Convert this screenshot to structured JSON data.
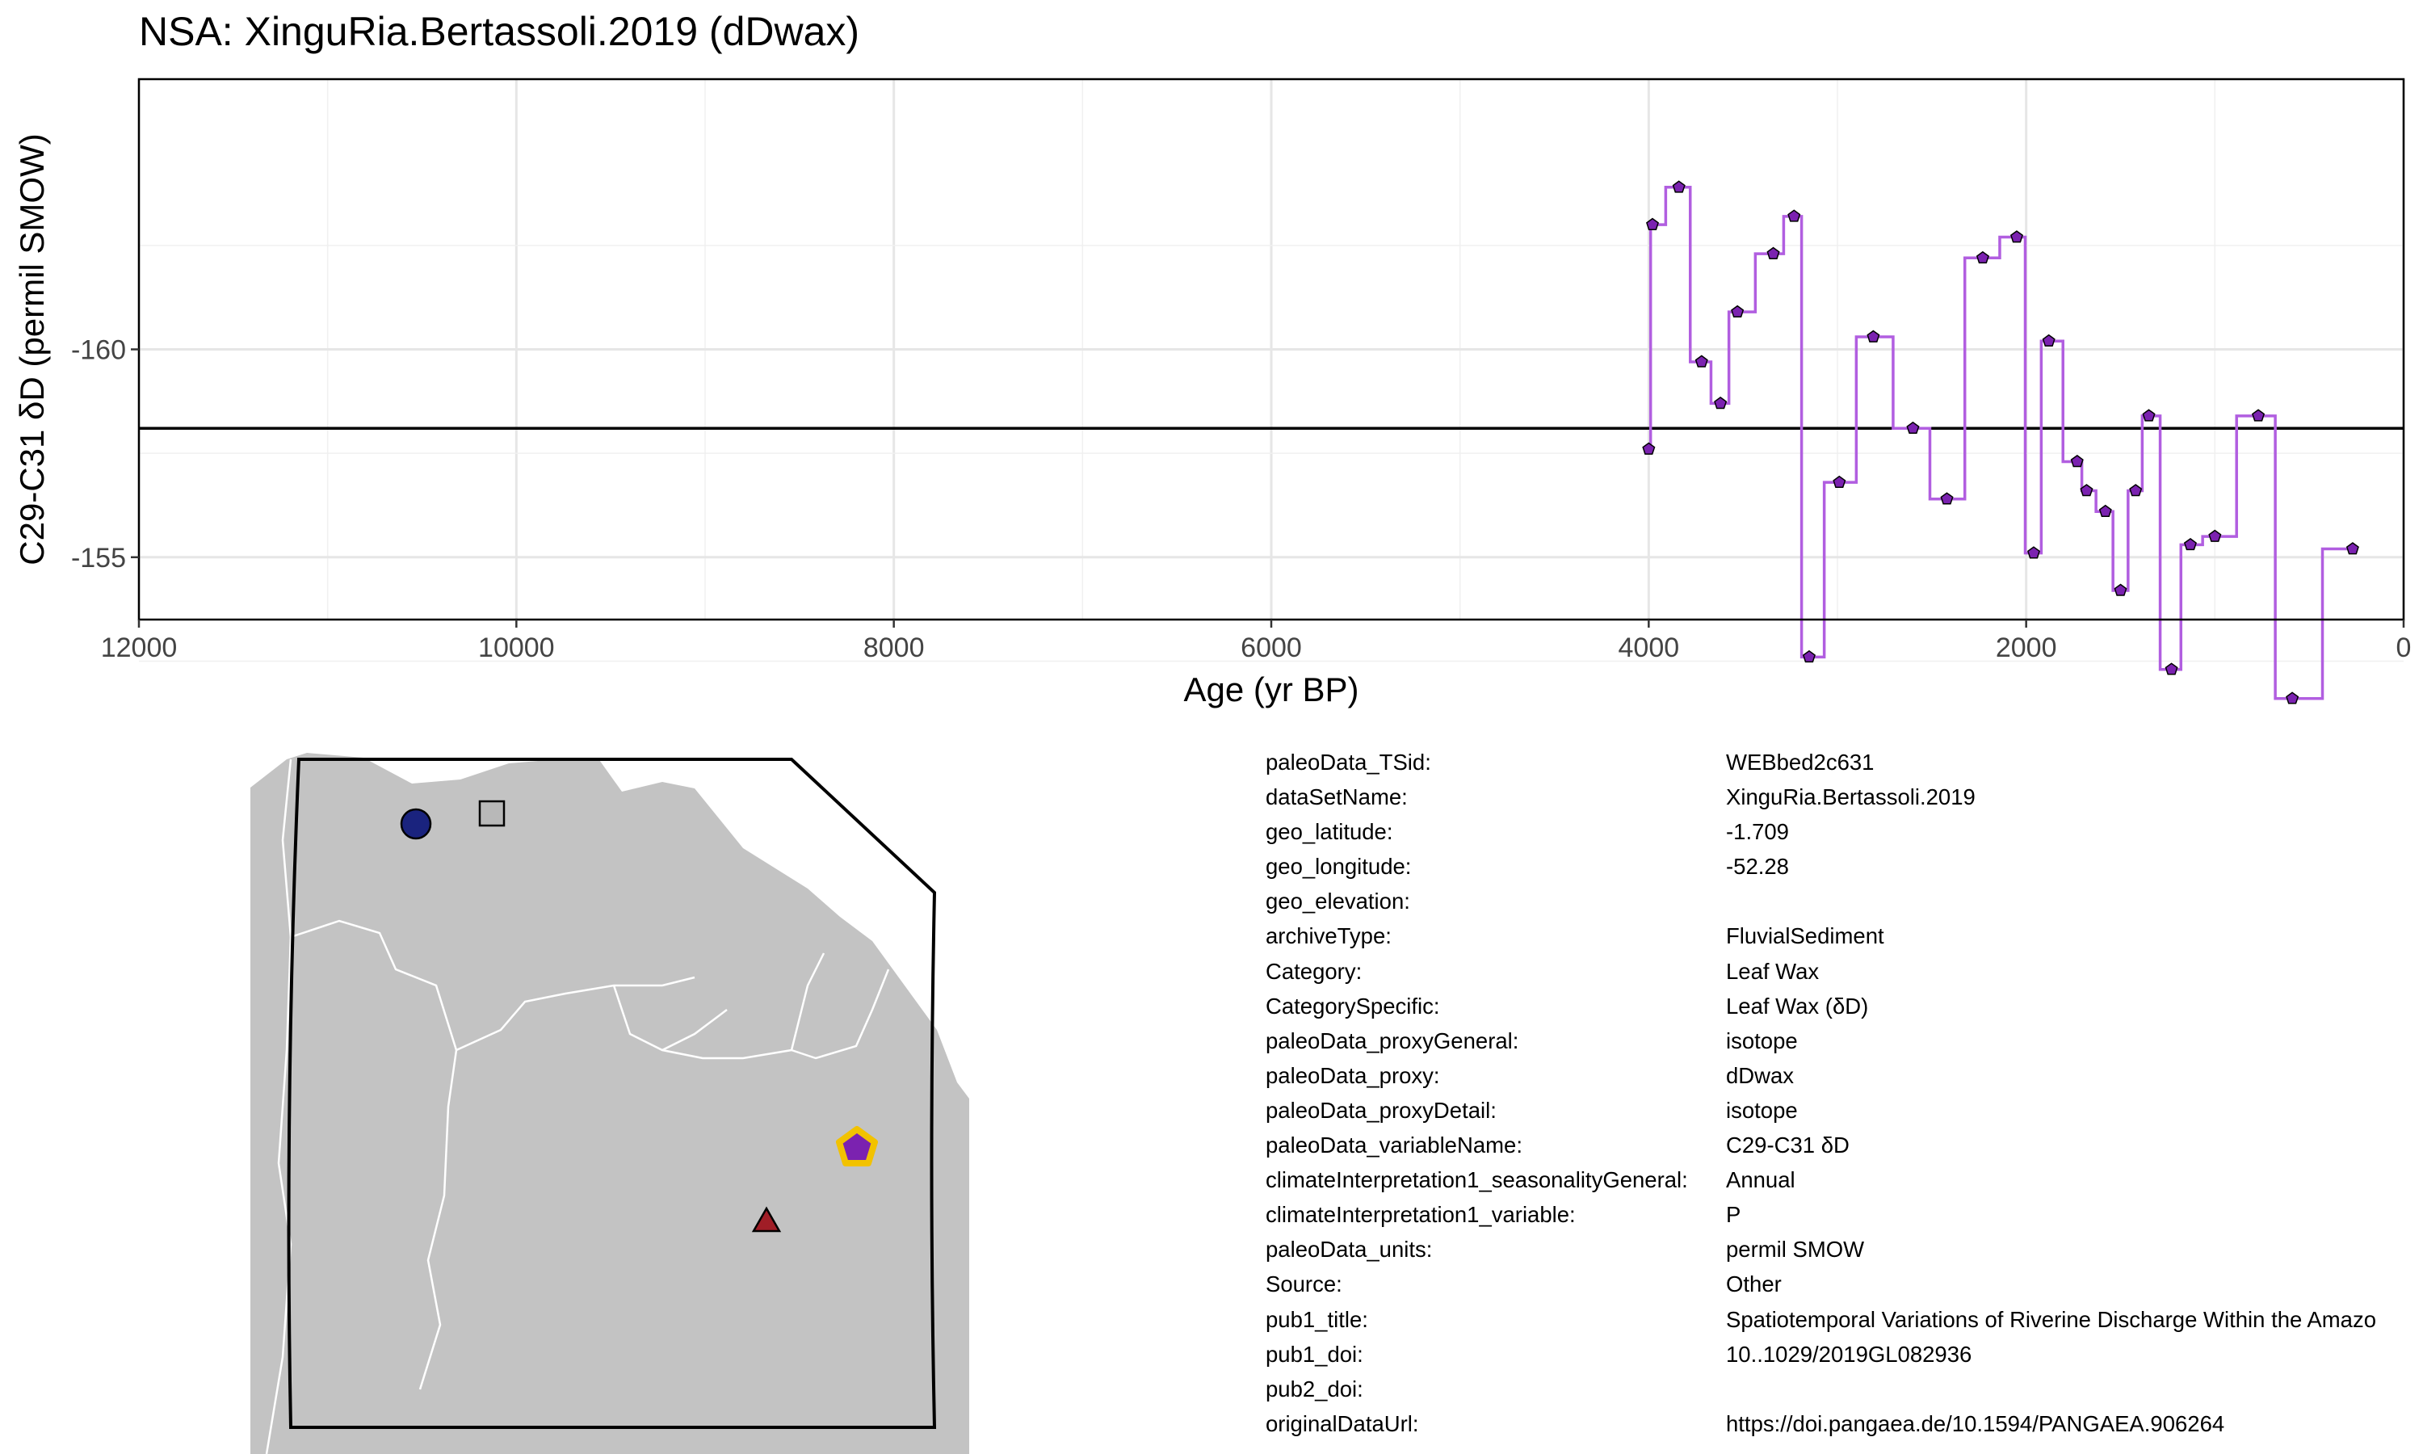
{
  "title": "NSA: XinguRia.Bertassoli.2019 (dDwax)",
  "chart_data": {
    "type": "line",
    "step": true,
    "xlabel": "Age (yr BP)",
    "ylabel": "C29-C31 δD (permil SMOW)",
    "xlim": [
      12000,
      0
    ],
    "ylim": [
      -166.5,
      -153.5
    ],
    "x_reversed": true,
    "y_reversed": true,
    "x_ticks": [
      12000,
      10000,
      8000,
      6000,
      4000,
      2000,
      0
    ],
    "x_tick_labels": [
      "12000",
      "10000",
      "8000",
      "6000",
      "4000",
      "2000",
      "0"
    ],
    "y_ticks": [
      -160,
      -155
    ],
    "y_tick_labels": [
      "-160",
      "-155"
    ],
    "reference_line_y": -158.1,
    "line_color": "#b15ee0",
    "marker_color": "#7b22b0",
    "grid": true,
    "series": [
      {
        "x": [
          4000,
          3980,
          3840,
          3720,
          3620,
          3530,
          3340,
          3230,
          3150,
          2990,
          2810,
          2600,
          2420,
          2230,
          2050,
          1960,
          1880,
          1730,
          1680,
          1580,
          1500,
          1420,
          1350,
          1230,
          1130,
          1000,
          770,
          590,
          270
        ],
        "y": [
          -157.6,
          -163.0,
          -163.9,
          -159.7,
          -158.7,
          -160.9,
          -162.3,
          -163.2,
          -152.6,
          -156.8,
          -160.3,
          -158.1,
          -156.4,
          -162.2,
          -162.7,
          -155.1,
          -160.2,
          -157.3,
          -156.6,
          -156.1,
          -154.2,
          -156.6,
          -158.4,
          -152.3,
          -155.3,
          -155.5,
          -158.4,
          -151.6,
          -155.2
        ]
      }
    ]
  },
  "map": {
    "land_color": "#c3c3c3",
    "border_color": "#ffffff",
    "markers": [
      {
        "shape": "circle",
        "color": "#1a237e"
      },
      {
        "shape": "square",
        "color": "#b8b8b8"
      },
      {
        "shape": "pentagon",
        "color": "#7b22b0",
        "outline": "#f2c200"
      },
      {
        "shape": "triangle",
        "color": "#a01d26"
      }
    ]
  },
  "metadata": [
    {
      "key": "paleoData_TSid:",
      "value": "WEBbed2c631"
    },
    {
      "key": "dataSetName:",
      "value": "XinguRia.Bertassoli.2019"
    },
    {
      "key": "geo_latitude:",
      "value": "-1.709"
    },
    {
      "key": "geo_longitude:",
      "value": "-52.28"
    },
    {
      "key": "geo_elevation:",
      "value": ""
    },
    {
      "key": "archiveType:",
      "value": "FluvialSediment"
    },
    {
      "key": "Category:",
      "value": "Leaf Wax"
    },
    {
      "key": "CategorySpecific:",
      "value": "Leaf Wax (δD)"
    },
    {
      "key": "paleoData_proxyGeneral:",
      "value": "isotope"
    },
    {
      "key": "paleoData_proxy:",
      "value": "dDwax"
    },
    {
      "key": "paleoData_proxyDetail:",
      "value": "isotope"
    },
    {
      "key": "paleoData_variableName:",
      "value": "C29-C31 δD"
    },
    {
      "key": "climateInterpretation1_seasonalityGeneral:",
      "value": "Annual"
    },
    {
      "key": "climateInterpretation1_variable:",
      "value": "P"
    },
    {
      "key": "paleoData_units:",
      "value": "permil SMOW"
    },
    {
      "key": "Source:",
      "value": "Other"
    },
    {
      "key": "pub1_title:",
      "value": "Spatiotemporal Variations of Riverine Discharge Within the Amazo"
    },
    {
      "key": "pub1_doi:",
      "value": "10..1029/2019GL082936"
    },
    {
      "key": "pub2_doi:",
      "value": ""
    },
    {
      "key": "originalDataUrl:",
      "value": "https://doi.pangaea.de/10.1594/PANGAEA.906264"
    }
  ]
}
